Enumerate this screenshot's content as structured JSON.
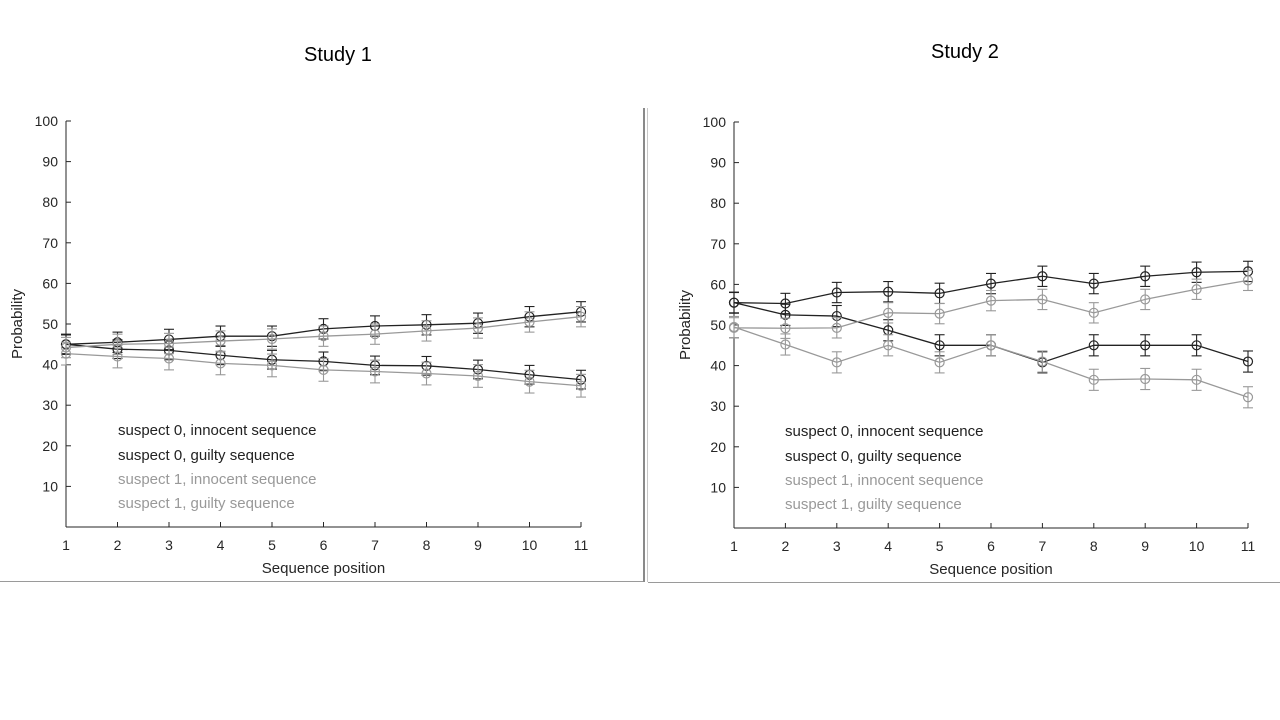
{
  "charts": [
    {
      "title": "Study 1",
      "chart_data": {
        "type": "line",
        "x": [
          1,
          2,
          3,
          4,
          5,
          6,
          7,
          8,
          9,
          10,
          11
        ],
        "xlabel": "Sequence position",
        "ylabel": "Probability",
        "ylim": [
          0,
          100
        ],
        "yticks": [
          10,
          20,
          30,
          40,
          50,
          60,
          70,
          80,
          90,
          100
        ],
        "legend_position": "bottom-left",
        "series": [
          {
            "name": "suspect 0, innocent sequence",
            "color": "#222222",
            "values": [
              45,
              45.5,
              46.2,
              47,
              47,
              48.8,
              49.5,
              49.8,
              50.2,
              51.8,
              53
            ],
            "err": 2.5
          },
          {
            "name": "suspect 0, guilty sequence",
            "color": "#222222",
            "values": [
              45,
              43.8,
              43.5,
              42.3,
              41.2,
              40.8,
              39.8,
              39.7,
              38.8,
              37.5,
              36.3
            ],
            "err": 2.3
          },
          {
            "name": "suspect 1, innocent sequence",
            "color": "#999999",
            "values": [
              44.2,
              45,
              45.2,
              45.8,
              46.3,
              47,
              47.5,
              48.3,
              49,
              50.5,
              51.8
            ],
            "err": 2.5
          },
          {
            "name": "suspect 1, guilty sequence",
            "color": "#999999",
            "values": [
              42.7,
              42,
              41.5,
              40.3,
              39.8,
              38.7,
              38.3,
              37.8,
              37.2,
              35.8,
              34.8
            ],
            "err": 2.8
          }
        ]
      }
    },
    {
      "title": "Study 2",
      "chart_data": {
        "type": "line",
        "x": [
          1,
          2,
          3,
          4,
          5,
          6,
          7,
          8,
          9,
          10,
          11
        ],
        "xlabel": "Sequence position",
        "ylabel": "Probability",
        "ylim": [
          0,
          100
        ],
        "yticks": [
          10,
          20,
          30,
          40,
          50,
          60,
          70,
          80,
          90,
          100
        ],
        "legend_position": "bottom-left",
        "series": [
          {
            "name": "suspect 0, innocent sequence",
            "color": "#222222",
            "values": [
              55.5,
              55.3,
              58,
              58.2,
              57.8,
              60.2,
              62,
              60.2,
              62,
              63,
              63.2
            ],
            "err": 2.5
          },
          {
            "name": "suspect 0, guilty sequence",
            "color": "#222222",
            "values": [
              55.5,
              52.5,
              52.2,
              48.7,
              45,
              45,
              40.8,
              45,
              45,
              45,
              41
            ],
            "err": 2.6
          },
          {
            "name": "suspect 1, innocent sequence",
            "color": "#999999",
            "values": [
              49.3,
              49.2,
              49.3,
              53,
              52.8,
              56,
              56.3,
              53,
              56.3,
              58.8,
              61
            ],
            "err": 2.5
          },
          {
            "name": "suspect 1, guilty sequence",
            "color": "#999999",
            "values": [
              49.5,
              45.2,
              40.8,
              45,
              40.8,
              45,
              41,
              36.5,
              36.7,
              36.5,
              32.2
            ],
            "err": 2.6
          }
        ]
      }
    }
  ]
}
